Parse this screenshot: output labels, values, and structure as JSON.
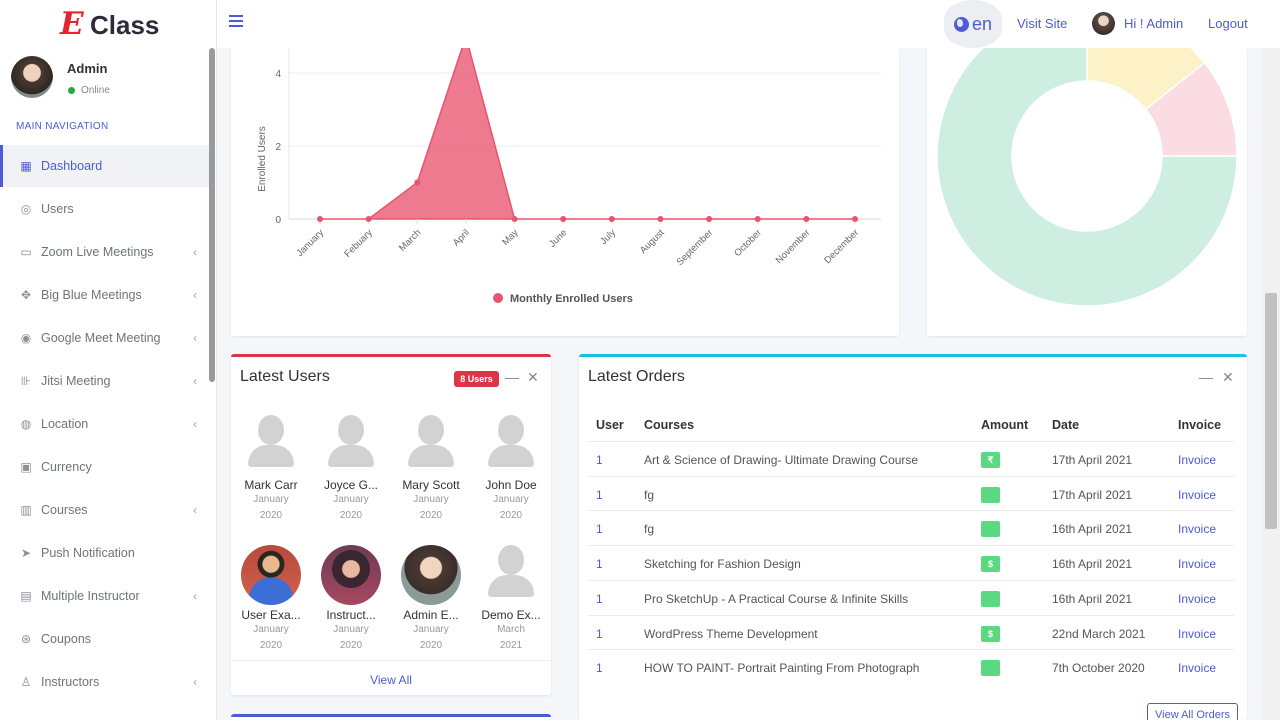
{
  "brand": {
    "logo_letter": "E",
    "name": "Class",
    "logo_color": "#e8222b"
  },
  "header": {
    "lang": "en",
    "visit_site": "Visit Site",
    "greeting": "Hi ! Admin",
    "logout": "Logout"
  },
  "sidebar": {
    "user_name": "Admin",
    "status": "Online",
    "section": "MAIN NAVIGATION",
    "items": [
      {
        "label": "Dashboard",
        "icon": "dashboard-icon",
        "glyph": "▦",
        "active": true,
        "submenu": false
      },
      {
        "label": "Users",
        "icon": "user-circle-icon",
        "glyph": "◎",
        "active": false,
        "submenu": false
      },
      {
        "label": "Zoom Live Meetings",
        "icon": "monitor-icon",
        "glyph": "▭",
        "active": false,
        "submenu": true
      },
      {
        "label": "Big Blue Meetings",
        "icon": "handshake-icon",
        "glyph": "✥",
        "active": false,
        "submenu": true
      },
      {
        "label": "Google Meet Meeting",
        "icon": "google-icon",
        "glyph": "◉",
        "active": false,
        "submenu": true
      },
      {
        "label": "Jitsi Meeting",
        "icon": "jitsi-icon",
        "glyph": "⊪",
        "active": false,
        "submenu": true
      },
      {
        "label": "Location",
        "icon": "globe-icon",
        "glyph": "◍",
        "active": false,
        "submenu": true
      },
      {
        "label": "Currency",
        "icon": "wallet-icon",
        "glyph": "▣",
        "active": false,
        "submenu": false
      },
      {
        "label": "Courses",
        "icon": "courses-icon",
        "glyph": "▥",
        "active": false,
        "submenu": true
      },
      {
        "label": "Push Notification",
        "icon": "send-icon",
        "glyph": "➤",
        "active": false,
        "submenu": false
      },
      {
        "label": "Multiple Instructor",
        "icon": "instructors-icon",
        "glyph": "▤",
        "active": false,
        "submenu": true
      },
      {
        "label": "Coupons",
        "icon": "coupon-icon",
        "glyph": "⊛",
        "active": false,
        "submenu": false
      },
      {
        "label": "Instructors",
        "icon": "instructor-icon",
        "glyph": "♙",
        "active": false,
        "submenu": true
      }
    ]
  },
  "chart_data": {
    "type": "area",
    "categories": [
      "January",
      "Febuary",
      "March",
      "April",
      "May",
      "June",
      "July",
      "August",
      "September",
      "October",
      "November",
      "December"
    ],
    "series": [
      {
        "name": "Monthly Enrolled Users",
        "values": [
          0,
          0,
          1,
          5,
          0,
          0,
          0,
          0,
          0,
          0,
          0,
          0
        ],
        "color": "#e8546e"
      }
    ],
    "ylabel": "Enrolled Users",
    "yticks": [
      0,
      2,
      4
    ],
    "ylim": [
      0,
      5
    ],
    "grid": true,
    "legend": "bottom"
  },
  "donut_colors": [
    "#cdeee0",
    "#fdf1c8",
    "#fbdce3"
  ],
  "latest_users": {
    "title": "Latest Users",
    "badge": "8 Users",
    "view_all": "View All",
    "users": [
      {
        "name": "Mark Carr",
        "date": "January 2020",
        "photo": "placeholder"
      },
      {
        "name": "Joyce G...",
        "date": "January 2020",
        "photo": "placeholder"
      },
      {
        "name": "Mary Scott",
        "date": "January 2020",
        "photo": "placeholder"
      },
      {
        "name": "John Doe",
        "date": "January 2020",
        "photo": "placeholder"
      },
      {
        "name": "User Exa...",
        "date": "January 2020",
        "photo": "man"
      },
      {
        "name": "Instruct...",
        "date": "January 2020",
        "photo": "woman-dark"
      },
      {
        "name": "Admin E...",
        "date": "January 2020",
        "photo": "woman"
      },
      {
        "name": "Demo Ex...",
        "date": "March 2021",
        "photo": "placeholder"
      }
    ]
  },
  "latest_orders": {
    "title": "Latest Orders",
    "columns": [
      "User",
      "Courses",
      "Amount",
      "Date",
      "Invoice"
    ],
    "view_all": "View All Orders",
    "rows": [
      {
        "user": "1",
        "course": "Art & Science of Drawing- Ultimate Drawing Course",
        "amount_symbol": "₹",
        "date": "17th April 2021",
        "invoice": "Invoice"
      },
      {
        "user": "1",
        "course": "fg",
        "amount_symbol": "",
        "date": "17th April 2021",
        "invoice": "Invoice"
      },
      {
        "user": "1",
        "course": "fg",
        "amount_symbol": "",
        "date": "16th April 2021",
        "invoice": "Invoice"
      },
      {
        "user": "1",
        "course": "Sketching for Fashion Design",
        "amount_symbol": "$",
        "date": "16th April 2021",
        "invoice": "Invoice"
      },
      {
        "user": "1",
        "course": "Pro SketchUp - A Practical Course & Infinite Skills",
        "amount_symbol": "",
        "date": "16th April 2021",
        "invoice": "Invoice"
      },
      {
        "user": "1",
        "course": "WordPress Theme Development",
        "amount_symbol": "$",
        "date": "22nd March 2021",
        "invoice": "Invoice"
      },
      {
        "user": "1",
        "course": "HOW TO PAINT- Portrait Painting From Photograph",
        "amount_symbol": "",
        "date": "7th October 2020",
        "invoice": "Invoice"
      }
    ]
  }
}
